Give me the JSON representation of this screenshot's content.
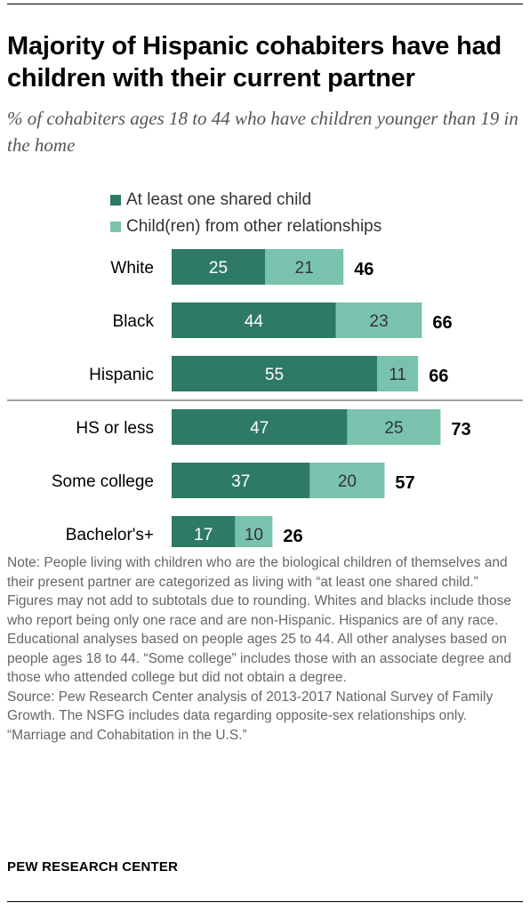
{
  "title": "Majority of Hispanic cohabiters have had children with their current partner",
  "subtitle": "% of cohabiters ages 18 to 44 who have children younger than 19 in the home",
  "colors": {
    "shared": "#2e7a66",
    "other": "#79c3ae"
  },
  "chart_data": {
    "type": "bar",
    "orientation": "horizontal",
    "stacked": true,
    "categories": [
      "White",
      "Black",
      "Hispanic",
      "HS or less",
      "Some college",
      "Bachelor's+"
    ],
    "series": [
      {
        "name": "At least one shared child",
        "values": [
          25,
          44,
          55,
          47,
          37,
          17
        ]
      },
      {
        "name": "Child(ren) from other relationships",
        "values": [
          21,
          23,
          11,
          25,
          20,
          10
        ]
      }
    ],
    "totals": [
      46,
      66,
      66,
      73,
      57,
      26
    ],
    "group_separator_after": 2,
    "legend": "top-left"
  },
  "note": "Note: People living with children who are the biological children of themselves and their present partner are categorized as living with “at least one shared child.” Figures may not add to subtotals due to rounding. Whites and blacks include those who report being only one race and are non-Hispanic. Hispanics are of any race. Educational analyses based on people ages 25 to 44. All other analyses based on people ages 18 to 44. “Some college” includes those with an associate degree and those who attended college but did not obtain a degree.",
  "source": "Source: Pew Research Center analysis of 2013-2017 National Survey of Family Growth. The NSFG includes data regarding opposite-sex relationships only.",
  "report": "“Marriage and Cohabitation in the U.S.”",
  "brand": "PEW RESEARCH CENTER"
}
